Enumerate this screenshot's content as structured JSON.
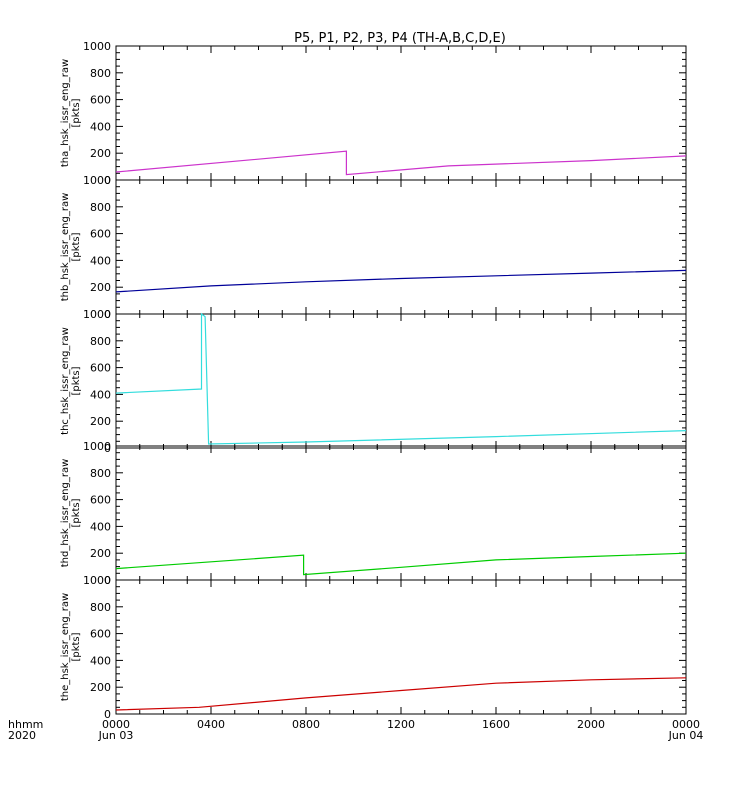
{
  "chart_data": {
    "type": "line",
    "title": "P5, P1, P2, P3, P4 (TH-A,B,C,D,E)",
    "x_axis": {
      "label_lines": [
        "hhmm",
        "2020"
      ],
      "ticks": [
        {
          "value": 0,
          "lines": [
            "0000",
            "Jun 03"
          ]
        },
        {
          "value": 4,
          "lines": [
            "0400"
          ]
        },
        {
          "value": 8,
          "lines": [
            "0800"
          ]
        },
        {
          "value": 12,
          "lines": [
            "1200"
          ]
        },
        {
          "value": 16,
          "lines": [
            "1600"
          ]
        },
        {
          "value": 20,
          "lines": [
            "2000"
          ]
        },
        {
          "value": 24,
          "lines": [
            "0000",
            "Jun 04"
          ]
        }
      ],
      "range": [
        0,
        24
      ],
      "units": "hours since 2020-06-03 0000"
    },
    "y_range": [
      0,
      1000
    ],
    "y_ticks": [
      0,
      200,
      400,
      600,
      800,
      1000
    ],
    "panels": [
      {
        "ylabel": "tha_hsk_issr_eng_raw",
        "units": "[pkts]",
        "color": "#cc33cc",
        "points": [
          [
            0,
            60
          ],
          [
            9.7,
            215
          ],
          [
            9.7,
            40
          ],
          [
            14,
            105
          ],
          [
            20,
            145
          ],
          [
            24,
            180
          ]
        ]
      },
      {
        "ylabel": "thb_hsk_issr_eng_raw",
        "units": "[pkts]",
        "color": "#000099",
        "points": [
          [
            0,
            165
          ],
          [
            4,
            210
          ],
          [
            8,
            240
          ],
          [
            12,
            265
          ],
          [
            16,
            285
          ],
          [
            20,
            305
          ],
          [
            24,
            325
          ]
        ]
      },
      {
        "ylabel": "thc_hsk_issr_eng_raw",
        "units": "[pkts]",
        "color": "#33dddd",
        "points": [
          [
            0,
            410
          ],
          [
            3.6,
            440
          ],
          [
            3.6,
            1000
          ],
          [
            3.75,
            980
          ],
          [
            3.9,
            30
          ],
          [
            8,
            45
          ],
          [
            16,
            85
          ],
          [
            24,
            130
          ]
        ]
      },
      {
        "ylabel": "thd_hsk_issr_eng_raw",
        "units": "[pkts]",
        "color": "#00cc00",
        "points": [
          [
            0,
            85
          ],
          [
            7.9,
            185
          ],
          [
            7.9,
            40
          ],
          [
            12,
            95
          ],
          [
            16,
            150
          ],
          [
            20,
            175
          ],
          [
            24,
            200
          ]
        ]
      },
      {
        "ylabel": "the_hsk_issr_eng_raw",
        "units": "[pkts]",
        "color": "#cc0000",
        "points": [
          [
            0,
            30
          ],
          [
            3.5,
            50
          ],
          [
            8,
            120
          ],
          [
            12,
            175
          ],
          [
            16,
            230
          ],
          [
            20,
            255
          ],
          [
            24,
            270
          ]
        ]
      }
    ]
  }
}
